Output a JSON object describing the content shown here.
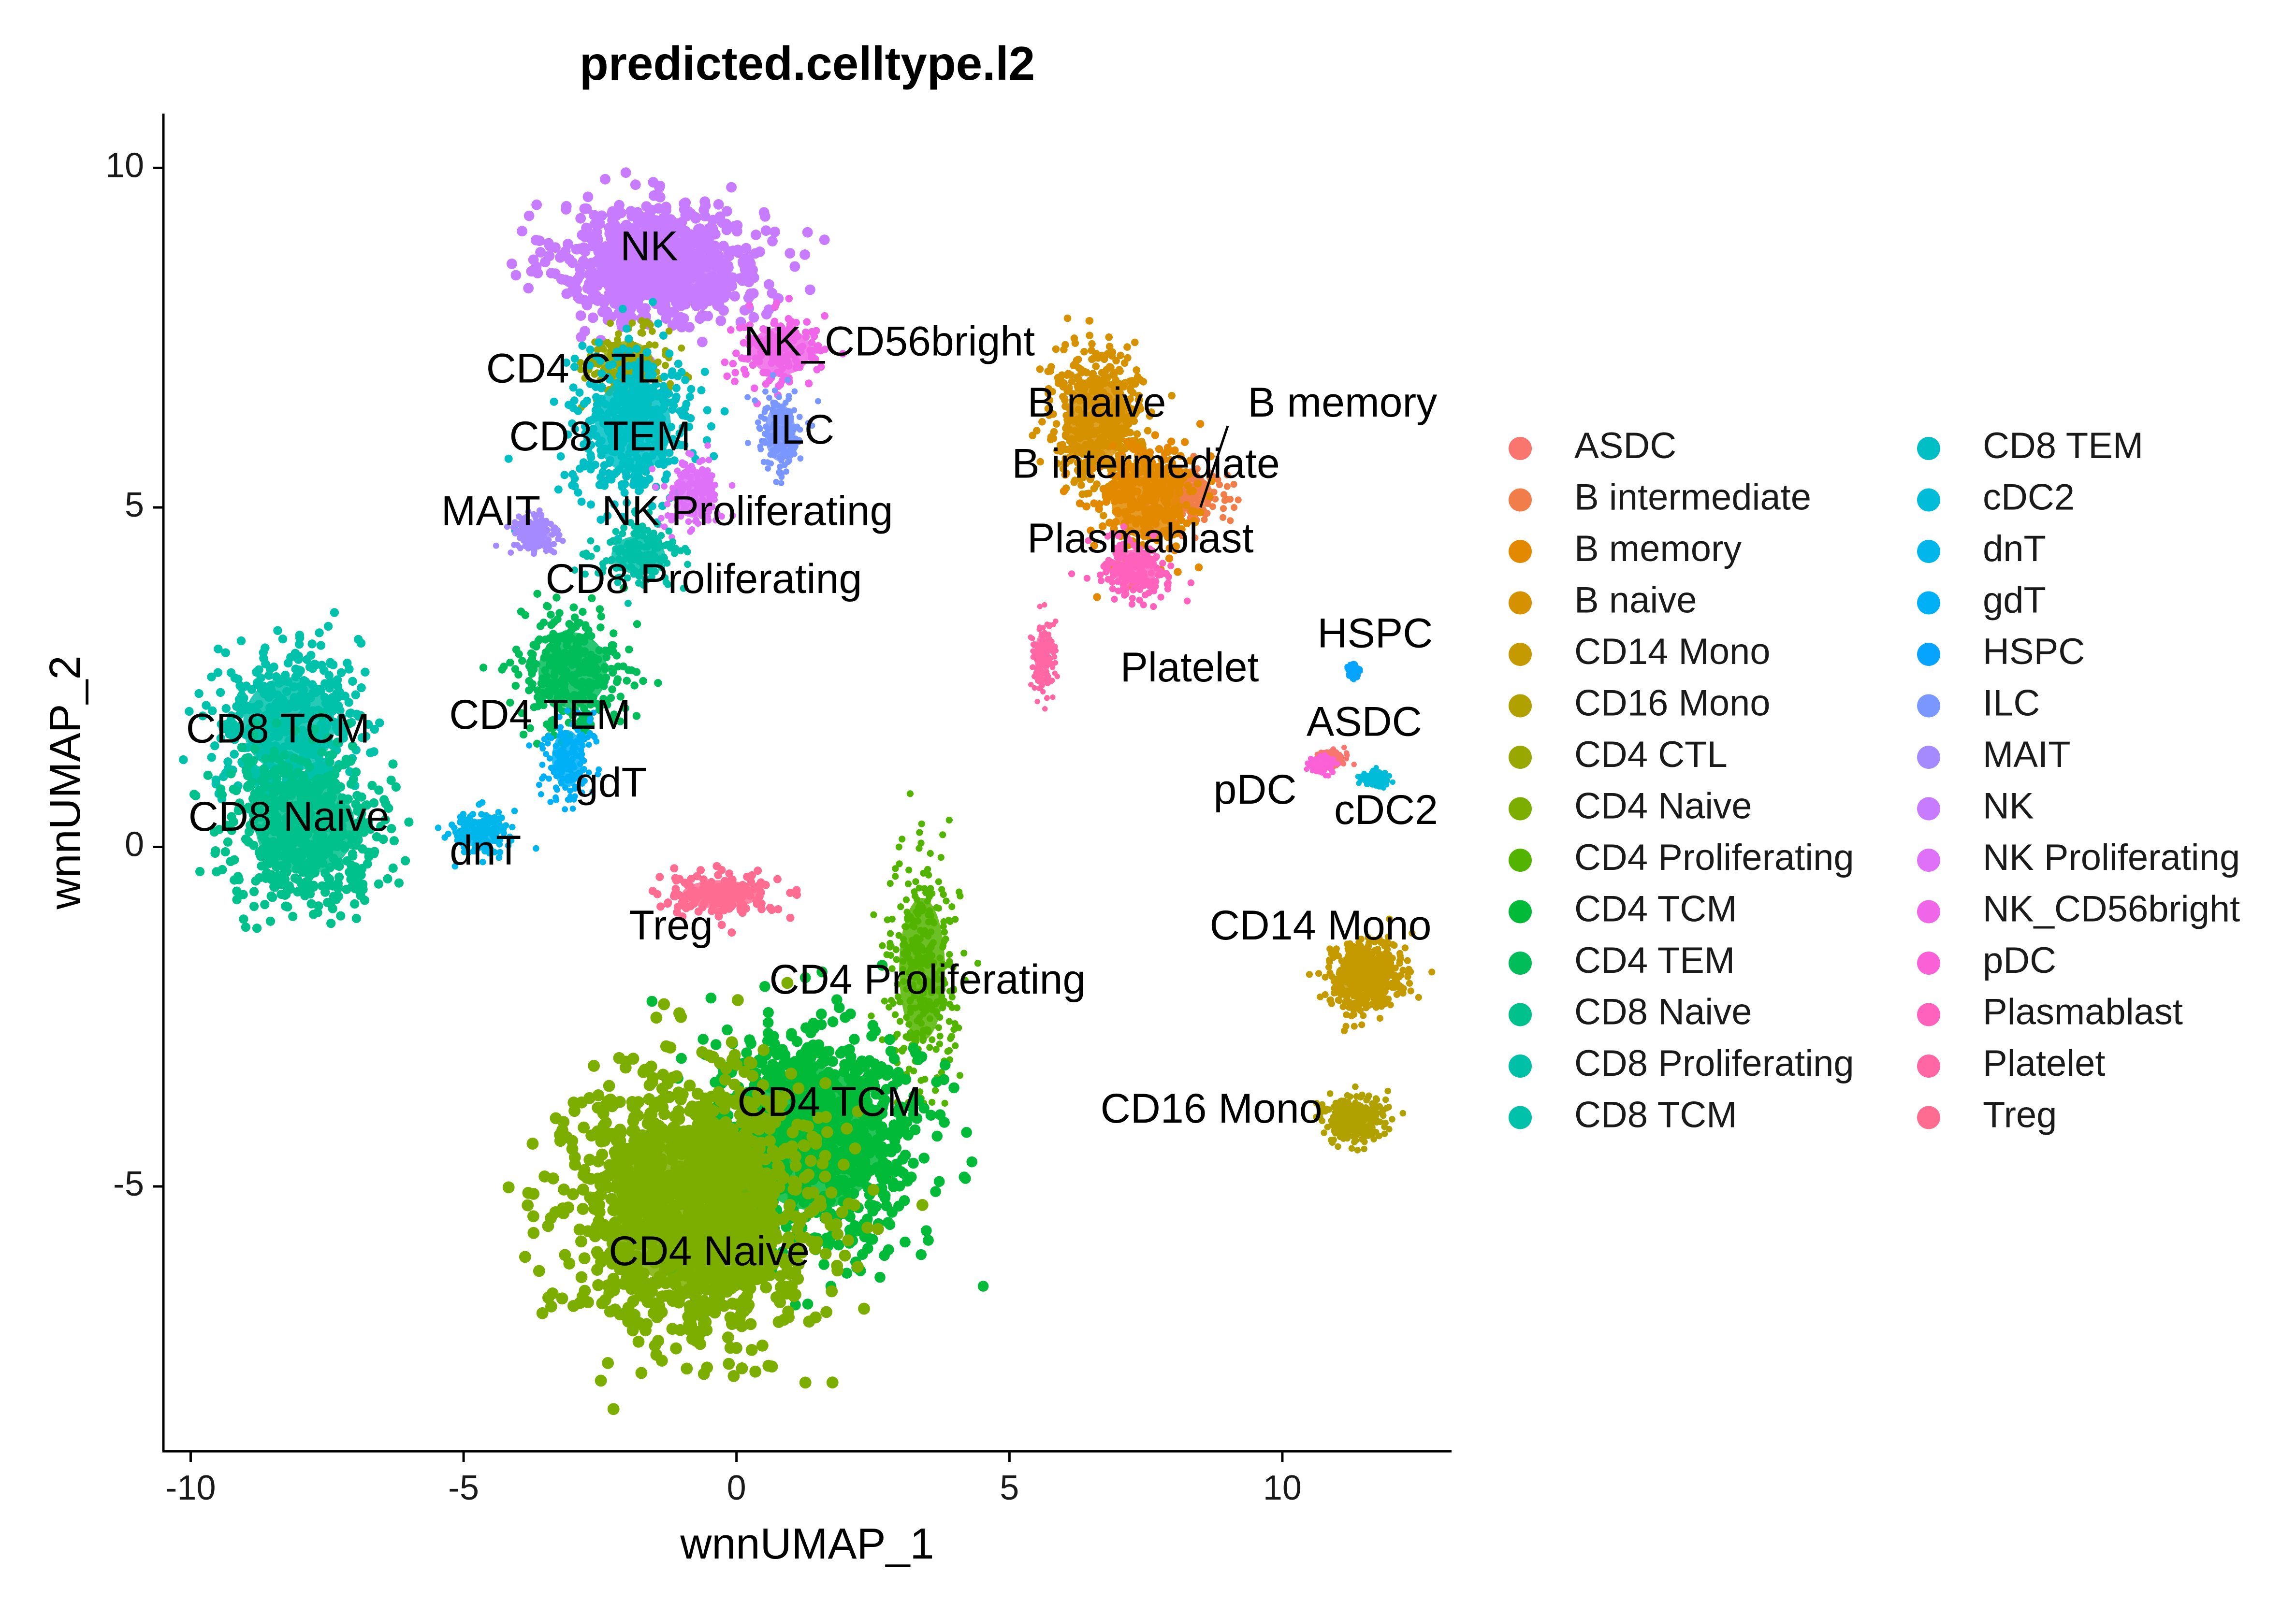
{
  "chart_data": {
    "type": "scatter",
    "title": "predicted.celltype.l2",
    "xlabel": "wnnUMAP_1",
    "ylabel": "wnnUMAP_2",
    "xlim": [
      -10.5,
      13.1
    ],
    "ylim": [
      -8.9,
      10.8
    ],
    "xticks": [
      "-10",
      "-5",
      "0",
      "5",
      "10"
    ],
    "yticks": [
      "-5",
      "0",
      "5",
      "10"
    ],
    "grid": false,
    "legend_position": "right",
    "series": [
      {
        "name": "ASDC",
        "color": "#F8766D"
      },
      {
        "name": "B intermediate",
        "color": "#F17E4A"
      },
      {
        "name": "B memory",
        "color": "#E38900"
      },
      {
        "name": "B naive",
        "color": "#D69100"
      },
      {
        "name": "CD14 Mono",
        "color": "#C49A00"
      },
      {
        "name": "CD16 Mono",
        "color": "#B0A100"
      },
      {
        "name": "CD4 CTL",
        "color": "#99A800"
      },
      {
        "name": "CD4 Naive",
        "color": "#7CAE00"
      },
      {
        "name": "CD4 Proliferating",
        "color": "#53B400"
      },
      {
        "name": "CD4 TCM",
        "color": "#00BA38"
      },
      {
        "name": "CD4 TEM",
        "color": "#00BC59"
      },
      {
        "name": "CD8 Naive",
        "color": "#00C08B"
      },
      {
        "name": "CD8 Proliferating",
        "color": "#00C0A7"
      },
      {
        "name": "CD8 TCM",
        "color": "#00C1AA"
      },
      {
        "name": "CD8 TEM",
        "color": "#00BFC4"
      },
      {
        "name": "cDC2",
        "color": "#00BCD8"
      },
      {
        "name": "dnT",
        "color": "#00B6EB"
      },
      {
        "name": "gdT",
        "color": "#00B0F6"
      },
      {
        "name": "HSPC",
        "color": "#06A4FF"
      },
      {
        "name": "ILC",
        "color": "#7997FF"
      },
      {
        "name": "MAIT",
        "color": "#A58AFF"
      },
      {
        "name": "NK",
        "color": "#C77CFF"
      },
      {
        "name": "NK Proliferating",
        "color": "#DF70F8"
      },
      {
        "name": "NK_CD56bright",
        "color": "#F066E8"
      },
      {
        "name": "pDC",
        "color": "#FB61D7"
      },
      {
        "name": "Plasmablast",
        "color": "#FF62BC"
      },
      {
        "name": "Platelet",
        "color": "#FF67A4"
      },
      {
        "name": "Treg",
        "color": "#FF6C91"
      }
    ],
    "clusters": [
      {
        "label": "NK",
        "color": "#C77CFF",
        "center": [
          -1.4,
          8.6
        ],
        "spread": [
          1.7,
          0.8
        ],
        "weight": 5
      },
      {
        "label": "NK_CD56bright",
        "color": "#F066E8",
        "center": [
          0.8,
          7.3
        ],
        "spread": [
          0.8,
          0.5
        ],
        "weight": 1
      },
      {
        "label": "CD4 CTL",
        "color": "#99A800",
        "center": [
          -2.0,
          7.1
        ],
        "spread": [
          0.7,
          0.5
        ],
        "weight": 1
      },
      {
        "label": "CD8 TEM",
        "color": "#00BFC4",
        "center": [
          -1.9,
          6.2
        ],
        "spread": [
          1.0,
          1.0
        ],
        "weight": 3
      },
      {
        "label": "ILC",
        "color": "#7997FF",
        "center": [
          0.8,
          6.1
        ],
        "spread": [
          0.4,
          0.6
        ],
        "weight": 1
      },
      {
        "label": "MAIT",
        "color": "#A58AFF",
        "center": [
          -3.7,
          4.6
        ],
        "spread": [
          0.4,
          0.3
        ],
        "weight": 1
      },
      {
        "label": "NK Proliferating",
        "color": "#DF70F8",
        "center": [
          -0.8,
          5.2
        ],
        "spread": [
          0.5,
          0.5
        ],
        "weight": 1
      },
      {
        "label": "CD8 Proliferating",
        "color": "#00C0A7",
        "center": [
          -1.8,
          4.3
        ],
        "spread": [
          0.7,
          0.4
        ],
        "weight": 1
      },
      {
        "label": "CD4 TEM",
        "color": "#00BC59",
        "center": [
          -3.0,
          2.6
        ],
        "spread": [
          0.9,
          0.8
        ],
        "weight": 2
      },
      {
        "label": "gdT",
        "color": "#00B0F6",
        "center": [
          -3.1,
          1.3
        ],
        "spread": [
          0.4,
          0.6
        ],
        "weight": 1
      },
      {
        "label": "dnT",
        "color": "#00B6EB",
        "center": [
          -4.7,
          0.2
        ],
        "spread": [
          0.5,
          0.3
        ],
        "weight": 1
      },
      {
        "label": "CD8 TCM",
        "color": "#00C1AA",
        "center": [
          -8.2,
          1.8
        ],
        "spread": [
          1.2,
          1.0
        ],
        "weight": 3
      },
      {
        "label": "CD8 Naive",
        "color": "#00C08B",
        "center": [
          -7.9,
          0.3
        ],
        "spread": [
          1.3,
          1.0
        ],
        "weight": 4
      },
      {
        "label": "Treg",
        "color": "#FF6C91",
        "center": [
          -0.3,
          -0.7
        ],
        "spread": [
          1.0,
          0.3
        ],
        "weight": 1
      },
      {
        "label": "CD4 Proliferating",
        "color": "#53B400",
        "center": [
          3.4,
          -1.8
        ],
        "spread": [
          0.6,
          1.5
        ],
        "weight": 2
      },
      {
        "label": "CD4 TCM",
        "color": "#00BA38",
        "center": [
          1.4,
          -4.3
        ],
        "spread": [
          1.8,
          1.5
        ],
        "weight": 6
      },
      {
        "label": "CD4 Naive",
        "color": "#7CAE00",
        "center": [
          -0.8,
          -5.3
        ],
        "spread": [
          2.1,
          1.7
        ],
        "weight": 9
      },
      {
        "label": "B naive",
        "color": "#D69100",
        "center": [
          6.6,
          6.3
        ],
        "spread": [
          0.8,
          0.9
        ],
        "weight": 3
      },
      {
        "label": "B intermediate",
        "color": "#F17E4A",
        "center": [
          8.3,
          5.2
        ],
        "spread": [
          0.6,
          0.4
        ],
        "weight": 1
      },
      {
        "label": "B memory",
        "color": "#E38900",
        "center": [
          7.5,
          5.1
        ],
        "spread": [
          0.9,
          0.8
        ],
        "weight": 2
      },
      {
        "label": "Plasmablast",
        "color": "#FF62BC",
        "center": [
          7.3,
          4.1
        ],
        "spread": [
          0.6,
          0.4
        ],
        "weight": 1
      },
      {
        "label": "Platelet",
        "color": "#FF67A4",
        "center": [
          5.6,
          2.8
        ],
        "spread": [
          0.2,
          0.5
        ],
        "weight": 1
      },
      {
        "label": "HSPC",
        "color": "#06A4FF",
        "center": [
          11.3,
          2.6
        ],
        "spread": [
          0.1,
          0.1
        ],
        "weight": 1
      },
      {
        "label": "ASDC",
        "color": "#F8766D",
        "center": [
          10.9,
          1.3
        ],
        "spread": [
          0.2,
          0.1
        ],
        "weight": 1
      },
      {
        "label": "pDC",
        "color": "#FB61D7",
        "center": [
          10.7,
          1.2
        ],
        "spread": [
          0.2,
          0.1
        ],
        "weight": 1
      },
      {
        "label": "cDC2",
        "color": "#00BCD8",
        "center": [
          11.7,
          1.0
        ],
        "spread": [
          0.2,
          0.1
        ],
        "weight": 1
      },
      {
        "label": "CD14 Mono",
        "color": "#C49A00",
        "center": [
          11.5,
          -1.9
        ],
        "spread": [
          0.6,
          0.5
        ],
        "weight": 3
      },
      {
        "label": "CD16 Mono",
        "color": "#B0A100",
        "center": [
          11.3,
          -4.0
        ],
        "spread": [
          0.5,
          0.3
        ],
        "weight": 2
      }
    ],
    "annotations": [
      {
        "text": "NK",
        "x": -1.6,
        "y": 8.8
      },
      {
        "text": "NK_CD56bright",
        "x": 2.8,
        "y": 7.4
      },
      {
        "text": "CD4 CTL",
        "x": -3.0,
        "y": 7.0
      },
      {
        "text": "B naive",
        "x": 6.6,
        "y": 6.5
      },
      {
        "text": "B memory",
        "x": 11.1,
        "y": 6.5
      },
      {
        "text": "B intermediate",
        "x": 7.5,
        "y": 5.6
      },
      {
        "text": "ILC",
        "x": 1.2,
        "y": 6.1
      },
      {
        "text": "CD8 TEM",
        "x": -2.5,
        "y": 6.0
      },
      {
        "text": "MAIT",
        "x": -4.5,
        "y": 4.9
      },
      {
        "text": "NK Proliferating",
        "x": 0.2,
        "y": 4.9
      },
      {
        "text": "Plasmablast",
        "x": 7.4,
        "y": 4.5
      },
      {
        "text": "CD8 Proliferating",
        "x": -0.6,
        "y": 3.9
      },
      {
        "text": "HSPC",
        "x": 11.7,
        "y": 3.1
      },
      {
        "text": "Platelet",
        "x": 8.3,
        "y": 2.6
      },
      {
        "text": "CD4 TEM",
        "x": -3.6,
        "y": 1.9
      },
      {
        "text": "ASDC",
        "x": 11.5,
        "y": 1.8
      },
      {
        "text": "CD8 TCM",
        "x": -8.4,
        "y": 1.7
      },
      {
        "text": "gdT",
        "x": -2.3,
        "y": 0.9
      },
      {
        "text": "pDC",
        "x": 9.5,
        "y": 0.8
      },
      {
        "text": "cDC2",
        "x": 11.9,
        "y": 0.5
      },
      {
        "text": "CD8 Naive",
        "x": -8.2,
        "y": 0.4
      },
      {
        "text": "dnT",
        "x": -4.6,
        "y": -0.1
      },
      {
        "text": "Treg",
        "x": -1.2,
        "y": -1.2
      },
      {
        "text": "CD14 Mono",
        "x": 10.7,
        "y": -1.2
      },
      {
        "text": "CD4 Proliferating",
        "x": 3.5,
        "y": -2.0
      },
      {
        "text": "CD4 TCM",
        "x": 1.7,
        "y": -3.8
      },
      {
        "text": "CD16 Mono",
        "x": 8.7,
        "y": -3.9
      },
      {
        "text": "CD4 Naive",
        "x": -0.5,
        "y": -6.0
      }
    ]
  }
}
